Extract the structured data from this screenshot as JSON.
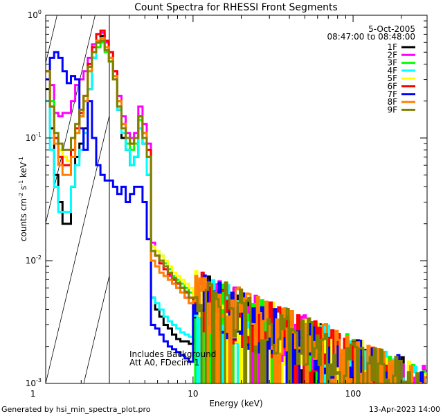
{
  "chart_data": {
    "type": "line",
    "title": "Count Spectra for RHESSI Front Segments",
    "xlabel": "Energy (keV)",
    "ylabel": "counts cm^-2 s^-1 keV^-1",
    "ylabel_parts": {
      "base": "counts cm",
      "exp1": "-2",
      "mid": " s",
      "exp2": "-1",
      "tail": " keV",
      "exp3": "-1"
    },
    "xscale": "log",
    "yscale": "log",
    "xlim": [
      1.2,
      290
    ],
    "ylim": [
      0.001,
      1.0
    ],
    "x_ticks": [
      {
        "value": 1,
        "label": "1"
      },
      {
        "value": 10,
        "label": "10"
      },
      {
        "value": 100,
        "label": "100"
      }
    ],
    "y_ticks": [
      {
        "value": 0.001,
        "base": "10",
        "exp": "-3"
      },
      {
        "value": 0.01,
        "base": "10",
        "exp": "-2"
      },
      {
        "value": 0.1,
        "base": "10",
        "exp": "-1"
      },
      {
        "value": 1.0,
        "base": "10",
        "exp": "0"
      }
    ],
    "shaded_region_below_keV": 3,
    "date": "5-Oct-2005",
    "time_range": "08:47:00 to 08:48:00",
    "notes": [
      "Includes Background",
      "Att A0, FDecim 1"
    ],
    "legend_position": "top-right",
    "series": [
      {
        "name": "1F",
        "color": "#000000",
        "y_low": [
          0.25,
          0.12,
          0.05,
          0.03,
          0.02,
          0.02,
          0.04,
          0.07,
          0.09,
          0.12,
          0.25,
          0.45,
          0.6,
          0.68,
          0.55,
          0.45,
          0.3,
          0.17,
          0.1,
          0.08,
          0.06,
          0.07,
          0.12,
          0.09,
          0.05,
          0.005,
          0.004,
          0.0035,
          0.003,
          0.0028,
          0.0025,
          0.0023,
          0.0022,
          0.0022,
          0.0021
        ]
      },
      {
        "name": "2F",
        "color": "#ff00ff",
        "y_low": [
          0.3,
          0.27,
          0.16,
          0.15,
          0.16,
          0.16,
          0.2,
          0.27,
          0.3,
          0.35,
          0.45,
          0.58,
          0.7,
          0.72,
          0.6,
          0.5,
          0.35,
          0.22,
          0.15,
          0.11,
          0.1,
          0.11,
          0.18,
          0.13,
          0.09,
          0.014,
          0.011,
          0.0095,
          0.0085,
          0.0075,
          0.0065,
          0.006,
          0.0055,
          0.005,
          0.0045
        ]
      },
      {
        "name": "3F",
        "color": "#00ff00",
        "y_low": [
          0.3,
          0.2,
          0.1,
          0.08,
          0.07,
          0.065,
          0.08,
          0.11,
          0.15,
          0.2,
          0.35,
          0.45,
          0.55,
          0.6,
          0.5,
          0.42,
          0.3,
          0.18,
          0.12,
          0.09,
          0.08,
          0.09,
          0.14,
          0.1,
          0.07,
          0.013,
          0.012,
          0.011,
          0.0095,
          0.0085,
          0.0075,
          0.007,
          0.0065,
          0.006,
          0.0055
        ]
      },
      {
        "name": "4F",
        "color": "#00ffff",
        "y_low": [
          0.2,
          0.08,
          0.04,
          0.025,
          0.025,
          0.025,
          0.04,
          0.06,
          0.08,
          0.11,
          0.25,
          0.45,
          0.6,
          0.65,
          0.55,
          0.45,
          0.3,
          0.17,
          0.11,
          0.08,
          0.06,
          0.07,
          0.12,
          0.09,
          0.05,
          0.005,
          0.0045,
          0.004,
          0.0035,
          0.0032,
          0.003,
          0.0028,
          0.0026,
          0.0025,
          0.0024
        ]
      },
      {
        "name": "5F",
        "color": "#ffff00",
        "y_low": [
          0.3,
          0.18,
          0.1,
          0.08,
          0.07,
          0.065,
          0.08,
          0.12,
          0.16,
          0.22,
          0.38,
          0.5,
          0.62,
          0.65,
          0.55,
          0.45,
          0.32,
          0.2,
          0.13,
          0.1,
          0.09,
          0.1,
          0.15,
          0.11,
          0.08,
          0.013,
          0.012,
          0.011,
          0.01,
          0.009,
          0.008,
          0.0075,
          0.007,
          0.0065,
          0.006
        ]
      },
      {
        "name": "6F",
        "color": "#ff0000",
        "y_low": [
          0.35,
          0.18,
          0.1,
          0.07,
          0.06,
          0.06,
          0.08,
          0.12,
          0.16,
          0.22,
          0.4,
          0.55,
          0.7,
          0.75,
          0.62,
          0.5,
          0.35,
          0.2,
          0.13,
          0.1,
          0.09,
          0.1,
          0.15,
          0.11,
          0.08,
          0.012,
          0.011,
          0.0095,
          0.0085,
          0.0078,
          0.007,
          0.0065,
          0.006,
          0.0055,
          0.005
        ]
      },
      {
        "name": "7F",
        "color": "#0000ff",
        "y_low": [
          0.3,
          0.45,
          0.5,
          0.45,
          0.35,
          0.28,
          0.32,
          0.3,
          0.12,
          0.08,
          0.2,
          0.1,
          0.06,
          0.05,
          0.045,
          0.045,
          0.04,
          0.035,
          0.04,
          0.03,
          0.035,
          0.04,
          0.04,
          0.03,
          0.015,
          0.003,
          0.0028,
          0.0025,
          0.0022,
          0.002,
          0.0019,
          0.0018,
          0.0017,
          0.0016,
          0.0015
        ]
      },
      {
        "name": "8F",
        "color": "#ff8000",
        "y_low": [
          0.35,
          0.18,
          0.09,
          0.06,
          0.05,
          0.05,
          0.07,
          0.11,
          0.15,
          0.2,
          0.35,
          0.5,
          0.62,
          0.65,
          0.55,
          0.45,
          0.32,
          0.2,
          0.13,
          0.1,
          0.09,
          0.1,
          0.15,
          0.11,
          0.07,
          0.01,
          0.009,
          0.008,
          0.0075,
          0.007,
          0.0065,
          0.006,
          0.0055,
          0.005,
          0.0045
        ]
      },
      {
        "name": "9F",
        "color": "#808000",
        "y_low": [
          0.35,
          0.18,
          0.11,
          0.09,
          0.08,
          0.08,
          0.1,
          0.13,
          0.17,
          0.22,
          0.38,
          0.5,
          0.6,
          0.62,
          0.52,
          0.42,
          0.3,
          0.18,
          0.12,
          0.1,
          0.09,
          0.1,
          0.15,
          0.1,
          0.07,
          0.012,
          0.011,
          0.01,
          0.009,
          0.008,
          0.0072,
          0.0066,
          0.006,
          0.0056,
          0.005
        ]
      }
    ]
  },
  "footer": {
    "generator": "Generated by hsi_min_spectra_plot.pro",
    "timestamp": "13-Apr-2023 14:00"
  }
}
